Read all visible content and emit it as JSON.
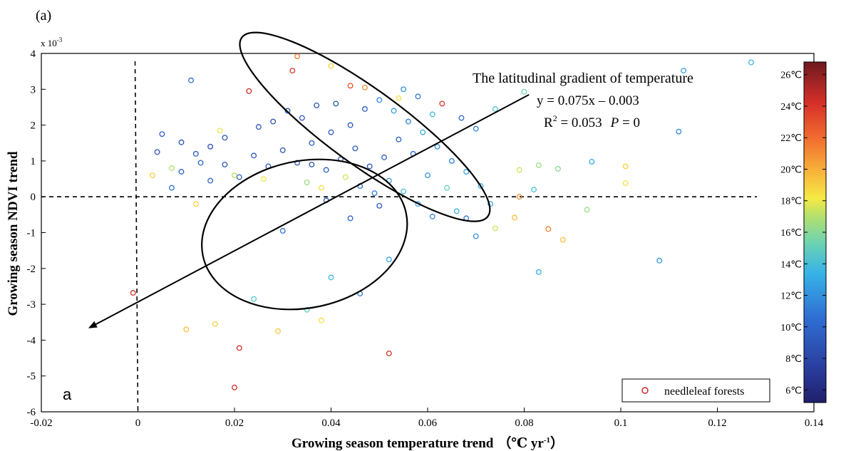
{
  "panel_label": "(a)",
  "corner_label": "a",
  "chart_data": {
    "type": "scatter",
    "xlabel": "Growing season temperature trend",
    "xlabel_unit": "（℃ yr",
    "xlabel_unit_sup": "-1",
    "xlabel_unit_close": "）",
    "ylabel": "Growing season NDVI trend",
    "y_multiplier": "x 10",
    "y_multiplier_exp": "-3",
    "xlim": [
      -0.02,
      0.14
    ],
    "ylim": [
      -6,
      4
    ],
    "x_ticks": [
      "-0.02",
      "0",
      "0.02",
      "0.04",
      "0.06",
      "0.08",
      "0.1",
      "0.12",
      "0.14"
    ],
    "x_tick_values": [
      -0.02,
      0,
      0.02,
      0.04,
      0.06,
      0.08,
      0.1,
      0.12,
      0.14
    ],
    "y_ticks": [
      "4",
      "3",
      "2",
      "1",
      "0",
      "-1",
      "-2",
      "-3",
      "-4",
      "-5",
      "-6"
    ],
    "y_tick_values": [
      4,
      3,
      2,
      1,
      0,
      -1,
      -2,
      -3,
      -4,
      -5,
      -6
    ],
    "reference_lines": {
      "x": 0,
      "y": 0
    },
    "colorbar": {
      "labels": [
        "26℃",
        "24℃",
        "22℃",
        "20℃",
        "18℃",
        "16℃",
        "14℃",
        "12℃",
        "10℃",
        "8℃",
        "6℃"
      ],
      "values": [
        26,
        24,
        22,
        20,
        18,
        16,
        14,
        12,
        10,
        8,
        6
      ],
      "range": [
        5.2,
        26.8
      ]
    },
    "annotation": {
      "title": "The latitudinal gradient of temperature",
      "equation": "y = 0.075x – 0.003",
      "r2_prefix": "R",
      "r2_sup": "2",
      "r2_rest": " = 0.053",
      "p_label": "P",
      "p_rest": " = 0"
    },
    "arrow": {
      "from": [
        0.081,
        2.85
      ],
      "to": [
        -0.01,
        -3.65
      ]
    },
    "ellipses": [
      {
        "center": [
          0.047,
          1.95
        ],
        "rx": 0.0315,
        "ry": 1.05,
        "rotation_deg": 36
      },
      {
        "center": [
          0.0345,
          -1.05
        ],
        "rx": 0.0215,
        "ry": 2.05,
        "rotation_deg": -12
      }
    ],
    "legend": {
      "label": "needleleaf forests",
      "position": "bottom-right"
    },
    "points": [
      [
        -0.001,
        -2.68,
        24.5
      ],
      [
        0.02,
        -5.32,
        24.2
      ],
      [
        0.052,
        -4.37,
        24.0
      ],
      [
        0.021,
        -4.22,
        24.3
      ],
      [
        0.033,
        3.92,
        21.5
      ],
      [
        0.032,
        3.52,
        24.0
      ],
      [
        0.023,
        2.95,
        24.5
      ],
      [
        0.044,
        3.1,
        23.0
      ],
      [
        0.063,
        2.6,
        24.0
      ],
      [
        0.08,
        2.93,
        15.5
      ],
      [
        0.127,
        3.75,
        13.5
      ],
      [
        0.113,
        3.52,
        12.5
      ],
      [
        0.112,
        1.82,
        11.5
      ],
      [
        0.108,
        -1.78,
        12.0
      ],
      [
        0.083,
        -2.1,
        13.0
      ],
      [
        0.101,
        0.85,
        19.0
      ],
      [
        0.101,
        0.38,
        18.5
      ],
      [
        0.093,
        -0.36,
        16.5
      ],
      [
        0.088,
        -1.2,
        19.5
      ],
      [
        0.085,
        -0.9,
        21.5
      ],
      [
        0.087,
        0.78,
        16.0
      ],
      [
        0.083,
        0.88,
        16.5
      ],
      [
        0.094,
        0.98,
        13.0
      ],
      [
        0.078,
        -0.58,
        19.5
      ],
      [
        0.079,
        0.0,
        21.0
      ],
      [
        0.074,
        -0.88,
        17.5
      ],
      [
        0.07,
        -1.1,
        12.0
      ],
      [
        0.068,
        -0.6,
        11.0
      ],
      [
        0.011,
        3.25,
        10.5
      ],
      [
        0.005,
        1.75,
        9.5
      ],
      [
        0.004,
        1.25,
        9.0
      ],
      [
        0.009,
        1.52,
        8.8
      ],
      [
        0.012,
        1.2,
        9.2
      ],
      [
        0.015,
        1.4,
        8.6
      ],
      [
        0.018,
        1.65,
        8.9
      ],
      [
        0.025,
        1.95,
        9.1
      ],
      [
        0.028,
        2.1,
        8.7
      ],
      [
        0.031,
        2.4,
        8.8
      ],
      [
        0.034,
        2.2,
        9.3
      ],
      [
        0.037,
        2.55,
        9.0
      ],
      [
        0.041,
        2.6,
        8.9
      ],
      [
        0.044,
        2.0,
        9.1
      ],
      [
        0.047,
        2.45,
        9.4
      ],
      [
        0.05,
        2.7,
        11.5
      ],
      [
        0.053,
        2.4,
        12.5
      ],
      [
        0.056,
        2.1,
        11.5
      ],
      [
        0.059,
        1.8,
        13.0
      ],
      [
        0.062,
        1.4,
        12.0
      ],
      [
        0.065,
        1.0,
        11.2
      ],
      [
        0.068,
        0.7,
        12.5
      ],
      [
        0.071,
        0.3,
        13.2
      ],
      [
        0.073,
        -0.2,
        12.8
      ],
      [
        0.066,
        -0.4,
        13.5
      ],
      [
        0.06,
        0.6,
        12.2
      ],
      [
        0.057,
        1.2,
        10.5
      ],
      [
        0.054,
        1.6,
        9.8
      ],
      [
        0.051,
        1.1,
        9.4
      ],
      [
        0.048,
        0.85,
        9.0
      ],
      [
        0.045,
        1.35,
        9.2
      ],
      [
        0.042,
        1.05,
        8.9
      ],
      [
        0.039,
        0.75,
        9.5
      ],
      [
        0.036,
        1.5,
        9.6
      ],
      [
        0.033,
        0.95,
        9.1
      ],
      [
        0.03,
        1.3,
        8.8
      ],
      [
        0.027,
        0.85,
        9.3
      ],
      [
        0.024,
        1.15,
        9.2
      ],
      [
        0.021,
        0.55,
        9.7
      ],
      [
        0.018,
        0.9,
        9.0
      ],
      [
        0.015,
        0.45,
        9.8
      ],
      [
        0.013,
        0.95,
        10.2
      ],
      [
        0.009,
        0.7,
        9.6
      ],
      [
        0.007,
        0.25,
        10.5
      ],
      [
        0.046,
        0.3,
        10.2
      ],
      [
        0.049,
        0.1,
        11.0
      ],
      [
        0.052,
        0.45,
        12.5
      ],
      [
        0.055,
        0.15,
        14.0
      ],
      [
        0.058,
        -0.2,
        13.0
      ],
      [
        0.061,
        -0.55,
        11.5
      ],
      [
        0.064,
        0.25,
        15.0
      ],
      [
        0.043,
        0.55,
        17.5
      ],
      [
        0.038,
        0.25,
        18.5
      ],
      [
        0.035,
        0.4,
        16.5
      ],
      [
        0.026,
        0.5,
        18.0
      ],
      [
        0.02,
        0.6,
        17.0
      ],
      [
        0.012,
        -0.2,
        19.0
      ],
      [
        0.01,
        -3.7,
        19.5
      ],
      [
        0.016,
        -3.55,
        19.0
      ],
      [
        0.038,
        -3.45,
        18.5
      ],
      [
        0.029,
        -3.75,
        19.2
      ],
      [
        0.035,
        -3.15,
        15.0
      ],
      [
        0.04,
        -2.25,
        13.5
      ],
      [
        0.052,
        -1.75,
        12.8
      ],
      [
        0.024,
        -2.85,
        14.5
      ],
      [
        0.046,
        -2.7,
        11.0
      ],
      [
        0.03,
        -0.95,
        10.5
      ],
      [
        0.044,
        -0.6,
        9.8
      ],
      [
        0.05,
        -0.25,
        9.4
      ],
      [
        0.039,
        -0.1,
        8.9
      ],
      [
        0.036,
        0.9,
        8.7
      ],
      [
        0.04,
        1.8,
        9.0
      ],
      [
        0.055,
        3.0,
        12.0
      ],
      [
        0.058,
        2.8,
        11.0
      ],
      [
        0.061,
        2.3,
        13.8
      ],
      [
        0.067,
        2.2,
        10.0
      ],
      [
        0.07,
        1.9,
        11.2
      ],
      [
        0.074,
        2.45,
        14.5
      ],
      [
        0.079,
        0.75,
        17.5
      ],
      [
        0.082,
        0.2,
        14.0
      ],
      [
        0.007,
        0.8,
        17.0
      ],
      [
        0.003,
        0.6,
        19.0
      ],
      [
        0.017,
        1.85,
        18.0
      ],
      [
        0.04,
        3.65,
        19.0
      ],
      [
        0.054,
        2.75,
        18.5
      ],
      [
        0.047,
        3.05,
        21.0
      ]
    ]
  }
}
